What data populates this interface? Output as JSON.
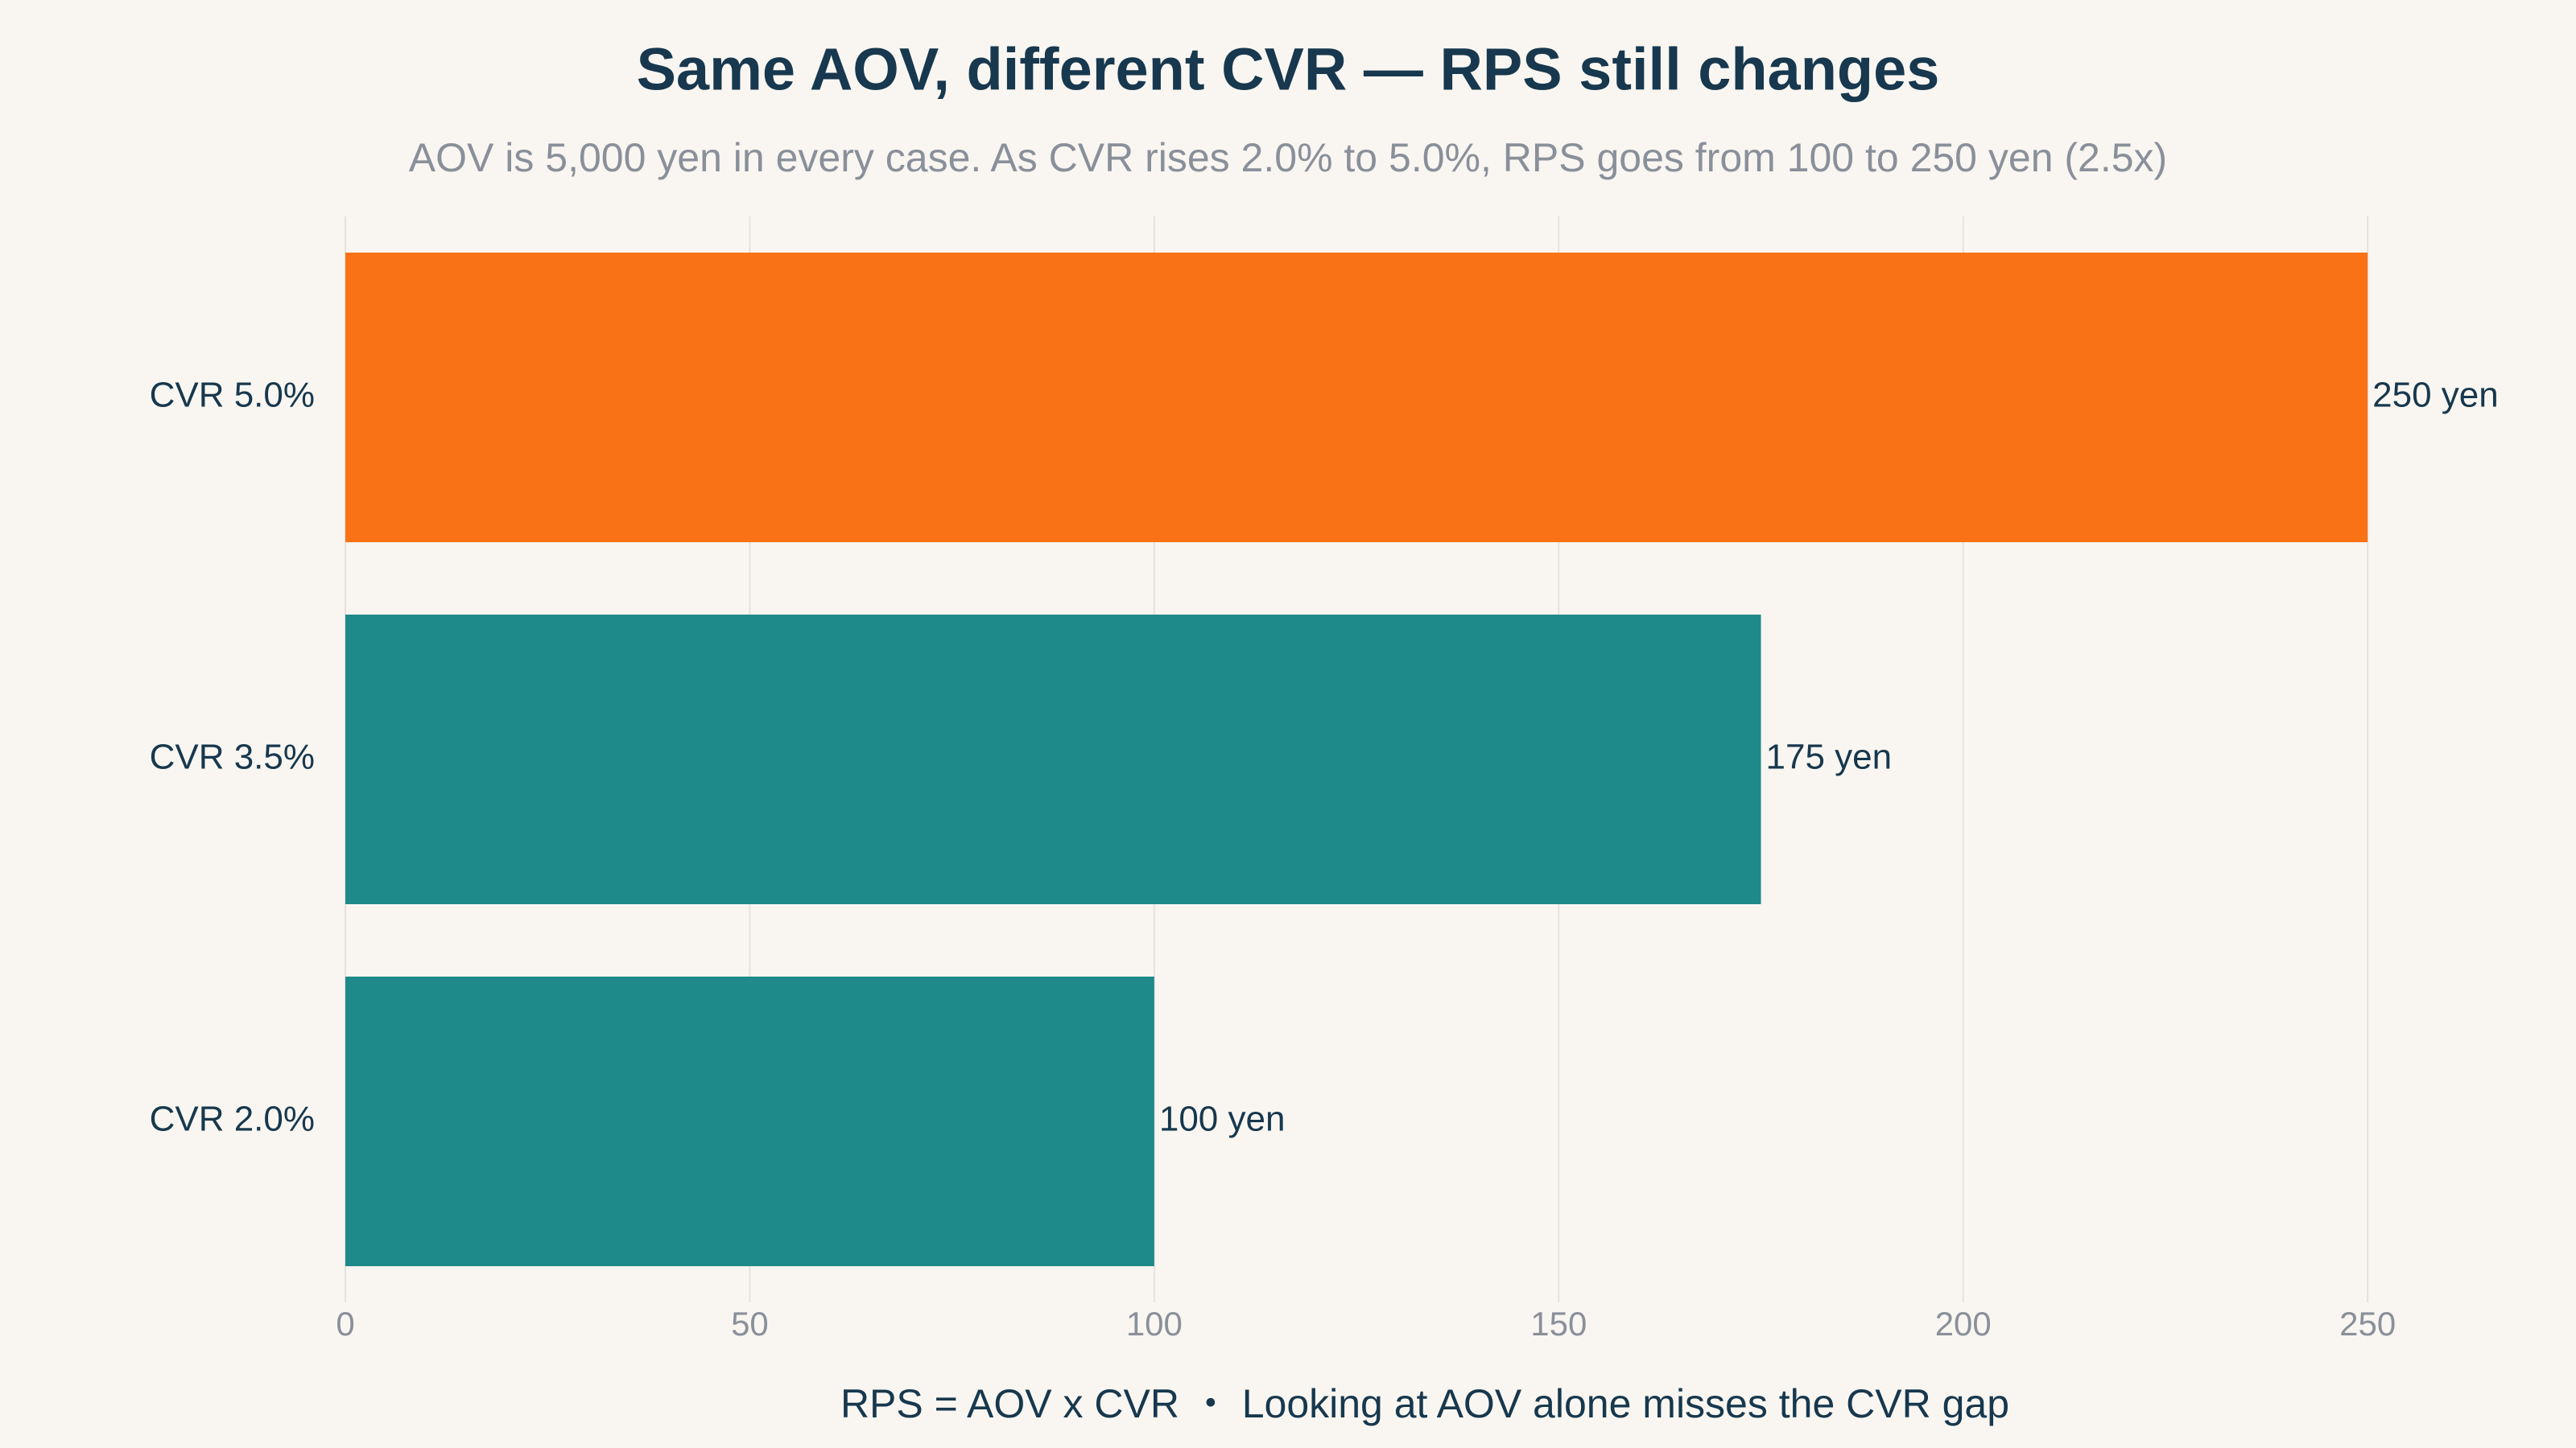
{
  "chart_data": {
    "type": "bar",
    "orientation": "horizontal",
    "title": "Same AOV, different CVR — RPS still changes",
    "subtitle": "AOV is 5,000 yen in every case. As CVR rises 2.0% to 5.0%, RPS goes from 100 to 250 yen (2.5x)",
    "x_label": "RPS = AOV x CVR ・ Looking at AOV alone misses the CVR gap",
    "categories": [
      "CVR 5.0%",
      "CVR 3.5%",
      "CVR 2.0%"
    ],
    "values": [
      250,
      175,
      100
    ],
    "value_labels": [
      "250 yen",
      "175 yen",
      "100 yen"
    ],
    "colors": [
      "#f97316",
      "#1f8a8a",
      "#1f8a8a"
    ],
    "xlim": [
      0,
      267
    ],
    "xticks": [
      0,
      50,
      100,
      150,
      200,
      250
    ],
    "grid": true
  }
}
